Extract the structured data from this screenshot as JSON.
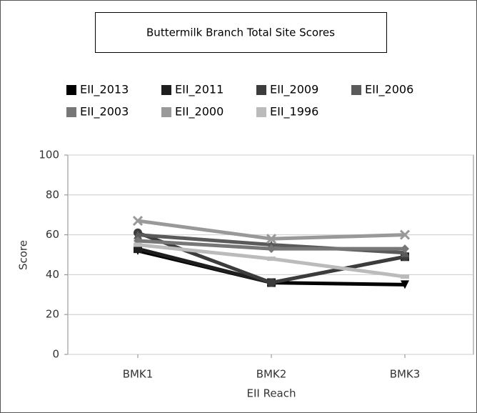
{
  "chart_data": {
    "type": "line",
    "title": "Buttermilk Branch Total Site Scores",
    "x_label": "EII Reach",
    "y_label": "Score",
    "categories": [
      "BMK1",
      "BMK2",
      "BMK3"
    ],
    "ylim": [
      0,
      100
    ],
    "yticks": [
      0,
      20,
      40,
      60,
      80,
      100
    ],
    "grid": true,
    "series": [
      {
        "name": "EII_2013",
        "color": "#000000",
        "values": [
          52,
          36,
          35
        ]
      },
      {
        "name": "EII_2011",
        "color": "#1e1e1e",
        "values": [
          53,
          36,
          49
        ]
      },
      {
        "name": "EII_2009",
        "color": "#3c3c3c",
        "values": [
          61,
          36,
          49
        ]
      },
      {
        "name": "EII_2006",
        "color": "#5a5a5a",
        "values": [
          60,
          55,
          51
        ]
      },
      {
        "name": "EII_2003",
        "color": "#777777",
        "values": [
          57,
          53,
          53
        ]
      },
      {
        "name": "EII_2000",
        "color": "#999999",
        "values": [
          67,
          58,
          60
        ]
      },
      {
        "name": "EII_1996",
        "color": "#bbbbbb",
        "values": [
          55,
          48,
          39
        ]
      }
    ]
  }
}
